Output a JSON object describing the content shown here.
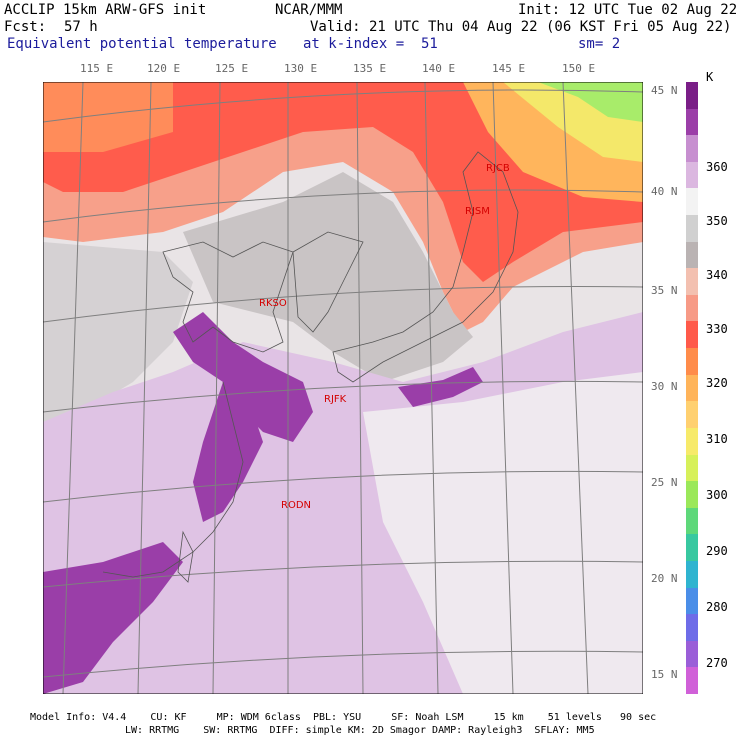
{
  "header": {
    "model": "ACCLIP 15km ARW-GFS init",
    "org": "NCAR/MMM",
    "init": "Init: 12 UTC Tue 02 Aug 22",
    "fcst_label": "Fcst:",
    "fcst_value": "57 h",
    "valid": "Valid: 21 UTC Thu 04 Aug 22 (06 KST Fri 05 Aug 22)",
    "field": "Equivalent potential temperature",
    "level": "at k-index =  51",
    "smooth": "sm= 2"
  },
  "map": {
    "longitude_labels": [
      "115 E",
      "120 E",
      "125 E",
      "130 E",
      "135 E",
      "140 E",
      "145 E",
      "150 E"
    ],
    "latitude_labels": [
      "45 N",
      "40 N",
      "35 N",
      "30 N",
      "25 N",
      "20 N",
      "15 N"
    ],
    "stations": [
      {
        "id": "RJCB"
      },
      {
        "id": "RJSM"
      },
      {
        "id": "RKSO"
      },
      {
        "id": "RJFK"
      },
      {
        "id": "RODN"
      }
    ]
  },
  "colorbar": {
    "unit": "K",
    "labels": [
      "360",
      "350",
      "340",
      "330",
      "320",
      "310",
      "300",
      "290",
      "280",
      "270"
    ],
    "colors": [
      "#7a1e87",
      "#9b3ea8",
      "#c78fd0",
      "#dbb7e0",
      "#f3f3f3",
      "#d0d0d0",
      "#bab3b3",
      "#f3c0b0",
      "#f79a86",
      "#ff5a4a",
      "#ff8c4a",
      "#ffb45a",
      "#ffd070",
      "#f7ea6a",
      "#d7f05a",
      "#9be85a",
      "#5ed87a",
      "#38c8a0",
      "#2fb4d0",
      "#4a8ee8",
      "#6e6ce8",
      "#9a5ed8",
      "#d060d8"
    ]
  },
  "footer": {
    "line1": "Model Info: V4.4    CU: KF     MP: WDM 6class  PBL: YSU     SF: Noah LSM     15 km    51 levels   90 sec",
    "line2": "LW: RRTMG    SW: RRTMG  DIFF: simple KM: 2D Smagor DAMP: Rayleigh3  SFLAY: MM5"
  }
}
